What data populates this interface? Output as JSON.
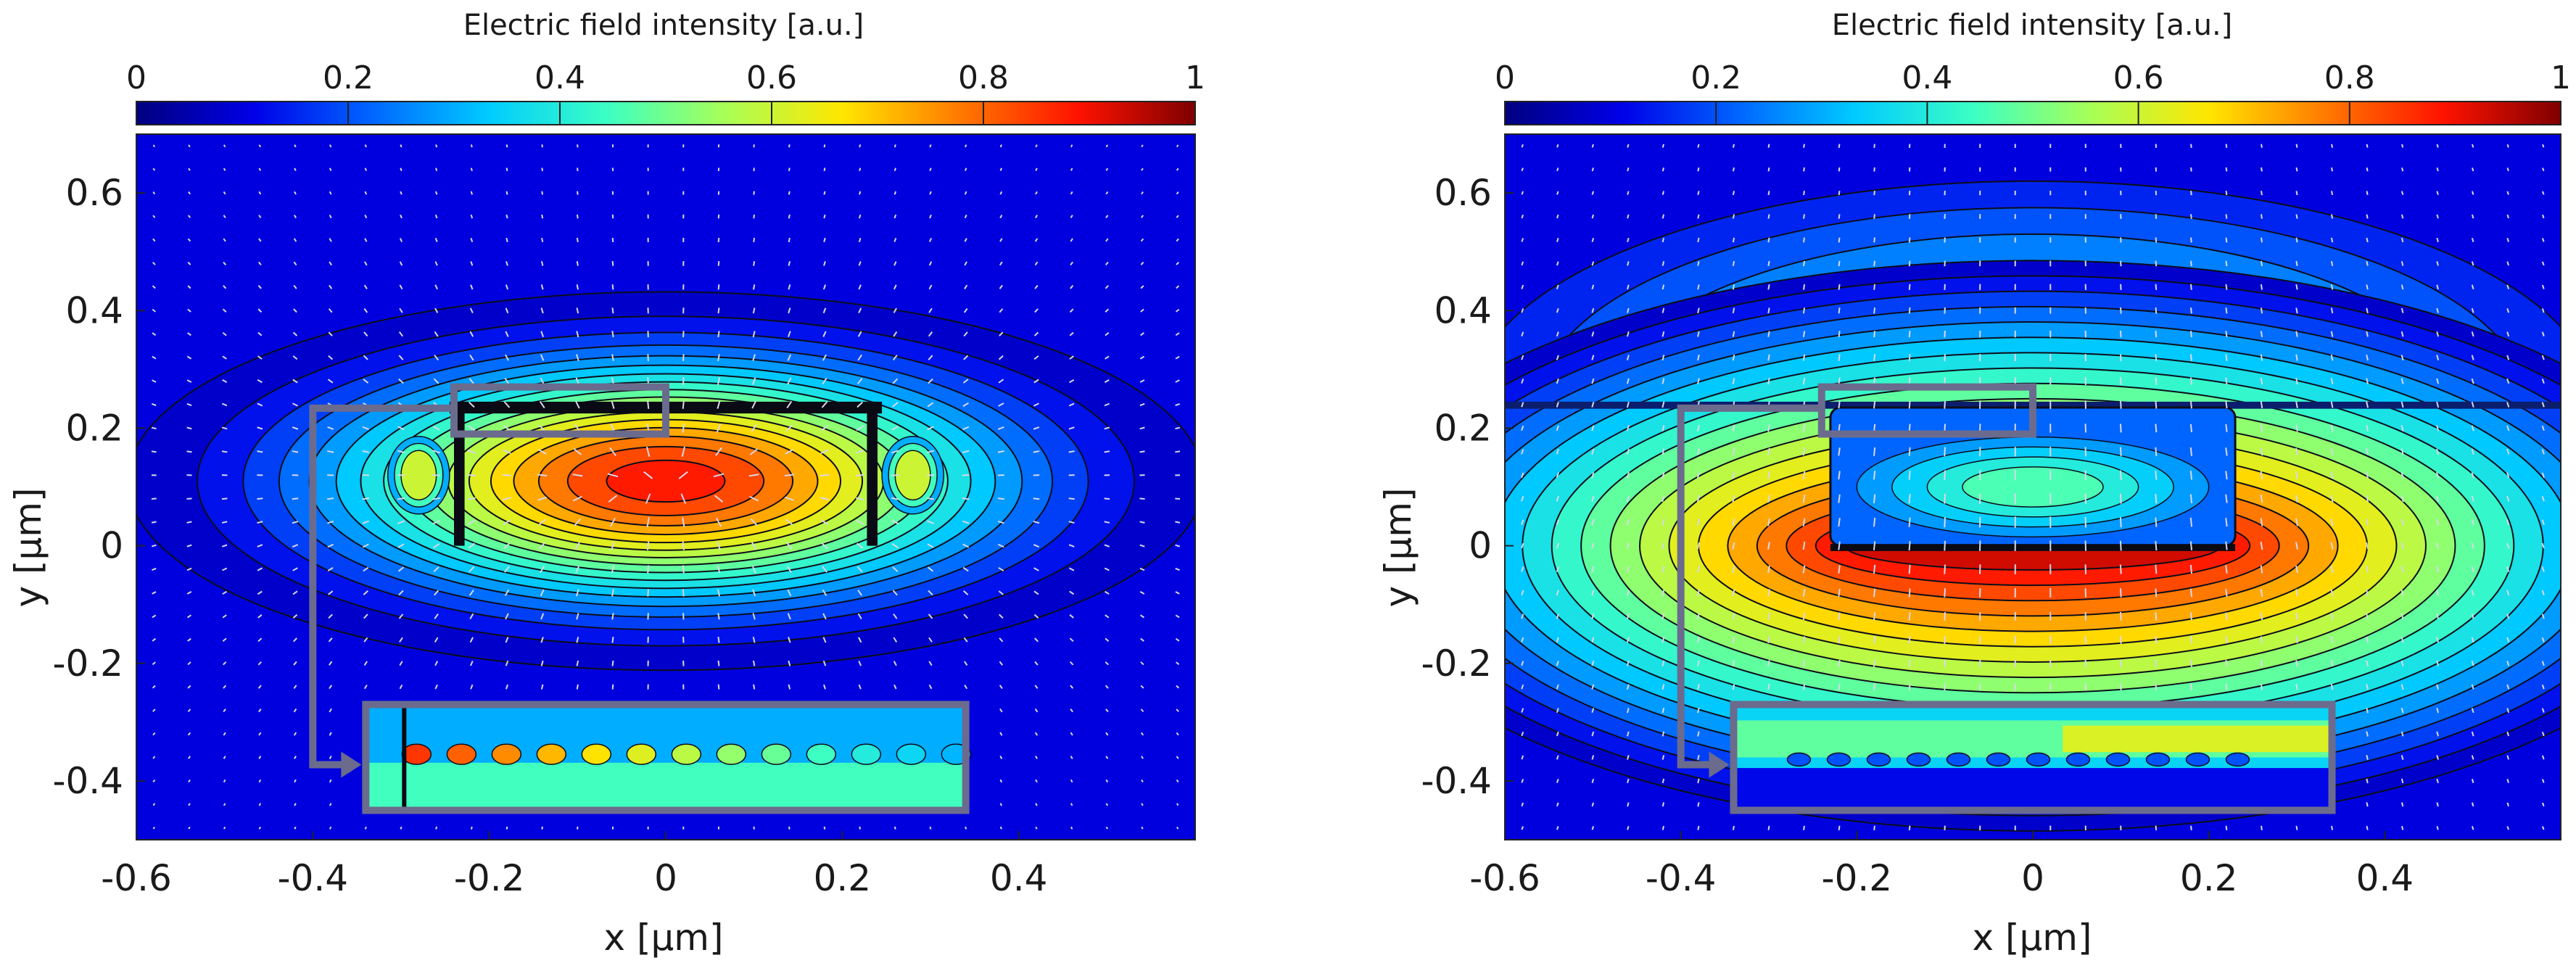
{
  "colors": {
    "colormap": [
      "#00007f",
      "#0000e8",
      "#0066ff",
      "#00ccff",
      "#3cffc3",
      "#a8ff57",
      "#ffe600",
      "#ff7a00",
      "#ff1200",
      "#7f0000"
    ],
    "contour_line": "#0d0d1a",
    "arrow": "#d8d8e8",
    "inset_frame": "#6b6b8e",
    "background": "#ffffff"
  },
  "chart_data": [
    {
      "id": "left",
      "type": "heatmap",
      "title": "",
      "colorbar": {
        "label": "Electric field intensity [a.u.]",
        "ticks": [
          "0",
          "0.2",
          "0.4",
          "0.6",
          "0.8",
          "1"
        ],
        "range": [
          0,
          1
        ]
      },
      "xlabel": "x [µm]",
      "ylabel": "y [µm]",
      "xlim": [
        -0.6,
        0.6
      ],
      "ylim": [
        -0.5,
        0.7
      ],
      "xticks": [
        {
          "v": -0.6,
          "label": "-0.6"
        },
        {
          "v": -0.4,
          "label": "-0.4"
        },
        {
          "v": -0.2,
          "label": "-0.2"
        },
        {
          "v": 0,
          "label": "0"
        },
        {
          "v": 0.2,
          "label": "0.2"
        },
        {
          "v": 0.4,
          "label": "0.4"
        }
      ],
      "yticks": [
        {
          "v": 0.6,
          "label": "0.6"
        },
        {
          "v": 0.4,
          "label": "0.4"
        },
        {
          "v": 0.2,
          "label": "0.2"
        },
        {
          "v": 0,
          "label": "0"
        },
        {
          "v": -0.2,
          "label": "-0.2"
        },
        {
          "v": -0.4,
          "label": "-0.4"
        }
      ],
      "field": {
        "peak_center": [
          0.0,
          0.11
        ],
        "peak_value": 0.88,
        "contour_levels": [
          0.05,
          0.1,
          0.15,
          0.2,
          0.25,
          0.3,
          0.35,
          0.4,
          0.45,
          0.5,
          0.55,
          0.6,
          0.65,
          0.7,
          0.75,
          0.8,
          0.85
        ],
        "structure": "metal channel (slot) with thin top plate y≈0.23 µm and side walls at x≈±0.23 µm"
      },
      "inset_source": [
        -0.24,
        0.19,
        0.0,
        0.27
      ],
      "inset_target": [
        -0.34,
        -0.45,
        0.34,
        -0.27
      ]
    },
    {
      "id": "right",
      "type": "heatmap",
      "title": "",
      "colorbar": {
        "label": "Electric field intensity [a.u.]",
        "ticks": [
          "0",
          "0.2",
          "0.4",
          "0.6",
          "0.8",
          "1"
        ],
        "range": [
          0,
          1
        ]
      },
      "xlabel": "x [µm]",
      "ylabel": "y [µm]",
      "xlim": [
        -0.6,
        0.6
      ],
      "ylim": [
        -0.5,
        0.7
      ],
      "xticks": [
        {
          "v": -0.6,
          "label": "-0.6"
        },
        {
          "v": -0.4,
          "label": "-0.4"
        },
        {
          "v": -0.2,
          "label": "-0.2"
        },
        {
          "v": 0,
          "label": "0"
        },
        {
          "v": 0.2,
          "label": "0.2"
        },
        {
          "v": 0.4,
          "label": "0.4"
        }
      ],
      "yticks": [
        {
          "v": 0.6,
          "label": "0.6"
        },
        {
          "v": 0.4,
          "label": "0.4"
        },
        {
          "v": 0.2,
          "label": "0.2"
        },
        {
          "v": 0,
          "label": "0"
        },
        {
          "v": -0.2,
          "label": "-0.2"
        },
        {
          "v": -0.4,
          "label": "-0.4"
        }
      ],
      "field": {
        "peak_center": [
          0.0,
          -0.03
        ],
        "peak_value": 0.95,
        "contour_levels": [
          0.05,
          0.1,
          0.15,
          0.2,
          0.25,
          0.3,
          0.35,
          0.4,
          0.45,
          0.5,
          0.55,
          0.6,
          0.65,
          0.7,
          0.75,
          0.8,
          0.85,
          0.9
        ],
        "structure": "dielectric ridge x∈[-0.23,0.23], y∈[0,0.23] with layer interface at y≈0.24 µm; field maximum just below the ridge"
      },
      "inset_source": [
        -0.24,
        0.19,
        0.0,
        0.27
      ],
      "inset_target": [
        -0.34,
        -0.45,
        0.34,
        -0.27
      ]
    }
  ]
}
